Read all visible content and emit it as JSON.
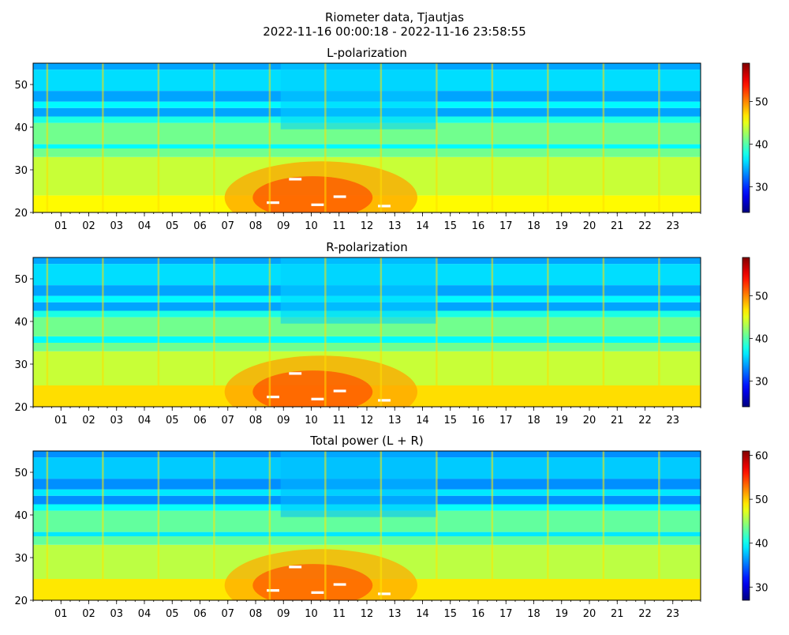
{
  "figure": {
    "title_line1": "Riometer data, Tjautjas",
    "title_line2": "2022-11-16 00:00:18 - 2022-11-16 23:58:55"
  },
  "chart_data": [
    {
      "type": "heatmap",
      "title": "L-polarization",
      "xlabel": "",
      "ylabel": "",
      "x_range_hours": [
        0,
        24
      ],
      "ylim": [
        20,
        55
      ],
      "x_tick_labels": [
        "01",
        "02",
        "03",
        "04",
        "05",
        "06",
        "07",
        "08",
        "09",
        "10",
        "11",
        "12",
        "13",
        "14",
        "15",
        "16",
        "17",
        "18",
        "19",
        "20",
        "21",
        "22",
        "23"
      ],
      "y_ticks": [
        20,
        30,
        40,
        50
      ],
      "colorbar": {
        "range": [
          24,
          59
        ],
        "ticks": [
          30,
          40,
          50
        ],
        "colormap": "jet"
      },
      "baseline_bands": [
        {
          "y": [
            20,
            24
          ],
          "v": 46
        },
        {
          "y": [
            24,
            25
          ],
          "v": 44
        },
        {
          "y": [
            25,
            33
          ],
          "v": 44
        },
        {
          "y": [
            33,
            35
          ],
          "v": 41
        },
        {
          "y": [
            35,
            36
          ],
          "v": 37
        },
        {
          "y": [
            36,
            41
          ],
          "v": 41
        },
        {
          "y": [
            41,
            42.5
          ],
          "v": 38
        },
        {
          "y": [
            42.5,
            44.5
          ],
          "v": 34
        },
        {
          "y": [
            44.5,
            46
          ],
          "v": 37
        },
        {
          "y": [
            46,
            48.5
          ],
          "v": 34
        },
        {
          "y": [
            48.5,
            53.5
          ],
          "v": 36
        },
        {
          "y": [
            53.5,
            55
          ],
          "v": 34
        }
      ],
      "spikes_hours": [
        0.5,
        2.5,
        4.5,
        6.5,
        8.5,
        10.5,
        12.5,
        14.5,
        16.5,
        18.5,
        20.5,
        22.5
      ],
      "enhancement": {
        "hours": [
          6.8,
          14.5
        ],
        "y": [
          20,
          29
        ],
        "peak_value": 52
      }
    },
    {
      "type": "heatmap",
      "title": "R-polarization",
      "xlabel": "",
      "ylabel": "",
      "x_range_hours": [
        0,
        24
      ],
      "ylim": [
        20,
        55
      ],
      "x_tick_labels": [
        "01",
        "02",
        "03",
        "04",
        "05",
        "06",
        "07",
        "08",
        "09",
        "10",
        "11",
        "12",
        "13",
        "14",
        "15",
        "16",
        "17",
        "18",
        "19",
        "20",
        "21",
        "22",
        "23"
      ],
      "y_ticks": [
        20,
        30,
        40,
        50
      ],
      "colorbar": {
        "range": [
          24,
          59
        ],
        "ticks": [
          30,
          40,
          50
        ],
        "colormap": "jet"
      },
      "baseline_bands": [
        {
          "y": [
            20,
            25
          ],
          "v": 47
        },
        {
          "y": [
            25,
            33
          ],
          "v": 44
        },
        {
          "y": [
            33,
            35
          ],
          "v": 41
        },
        {
          "y": [
            35,
            36.5
          ],
          "v": 37
        },
        {
          "y": [
            36.5,
            41
          ],
          "v": 41
        },
        {
          "y": [
            41,
            42.5
          ],
          "v": 38
        },
        {
          "y": [
            42.5,
            44.5
          ],
          "v": 34
        },
        {
          "y": [
            44.5,
            46
          ],
          "v": 37
        },
        {
          "y": [
            46,
            48.5
          ],
          "v": 34
        },
        {
          "y": [
            48.5,
            53.5
          ],
          "v": 36
        },
        {
          "y": [
            53.5,
            55
          ],
          "v": 34
        }
      ],
      "spikes_hours": [
        0.5,
        2.5,
        4.5,
        6.5,
        8.5,
        10.5,
        12.5,
        14.5,
        16.5,
        18.5,
        20.5,
        22.5
      ],
      "enhancement": {
        "hours": [
          6.8,
          14.5
        ],
        "y": [
          20,
          29
        ],
        "peak_value": 52
      }
    },
    {
      "type": "heatmap",
      "title": "Total power (L + R)",
      "xlabel": "",
      "ylabel": "",
      "x_range_hours": [
        0,
        24
      ],
      "ylim": [
        20,
        55
      ],
      "x_tick_labels": [
        "01",
        "02",
        "03",
        "04",
        "05",
        "06",
        "07",
        "08",
        "09",
        "10",
        "11",
        "12",
        "13",
        "14",
        "15",
        "16",
        "17",
        "18",
        "19",
        "20",
        "21",
        "22",
        "23"
      ],
      "y_ticks": [
        20,
        30,
        40,
        50
      ],
      "colorbar": {
        "range": [
          27,
          61
        ],
        "ticks": [
          30,
          40,
          50,
          60
        ],
        "colormap": "jet"
      },
      "baseline_bands": [
        {
          "y": [
            20,
            25
          ],
          "v": 49
        },
        {
          "y": [
            25,
            33
          ],
          "v": 46
        },
        {
          "y": [
            33,
            35
          ],
          "v": 43
        },
        {
          "y": [
            35,
            36
          ],
          "v": 39
        },
        {
          "y": [
            36,
            41
          ],
          "v": 43
        },
        {
          "y": [
            41,
            42.5
          ],
          "v": 40
        },
        {
          "y": [
            42.5,
            44.5
          ],
          "v": 36
        },
        {
          "y": [
            44.5,
            46
          ],
          "v": 39
        },
        {
          "y": [
            46,
            48.5
          ],
          "v": 36
        },
        {
          "y": [
            48.5,
            53.5
          ],
          "v": 38
        },
        {
          "y": [
            53.5,
            55
          ],
          "v": 36
        }
      ],
      "spikes_hours": [
        0.5,
        2.5,
        4.5,
        6.5,
        8.5,
        10.5,
        12.5,
        14.5,
        16.5,
        18.5,
        20.5,
        22.5
      ],
      "enhancement": {
        "hours": [
          6.8,
          14.5
        ],
        "y": [
          20,
          29
        ],
        "peak_value": 54
      }
    }
  ]
}
